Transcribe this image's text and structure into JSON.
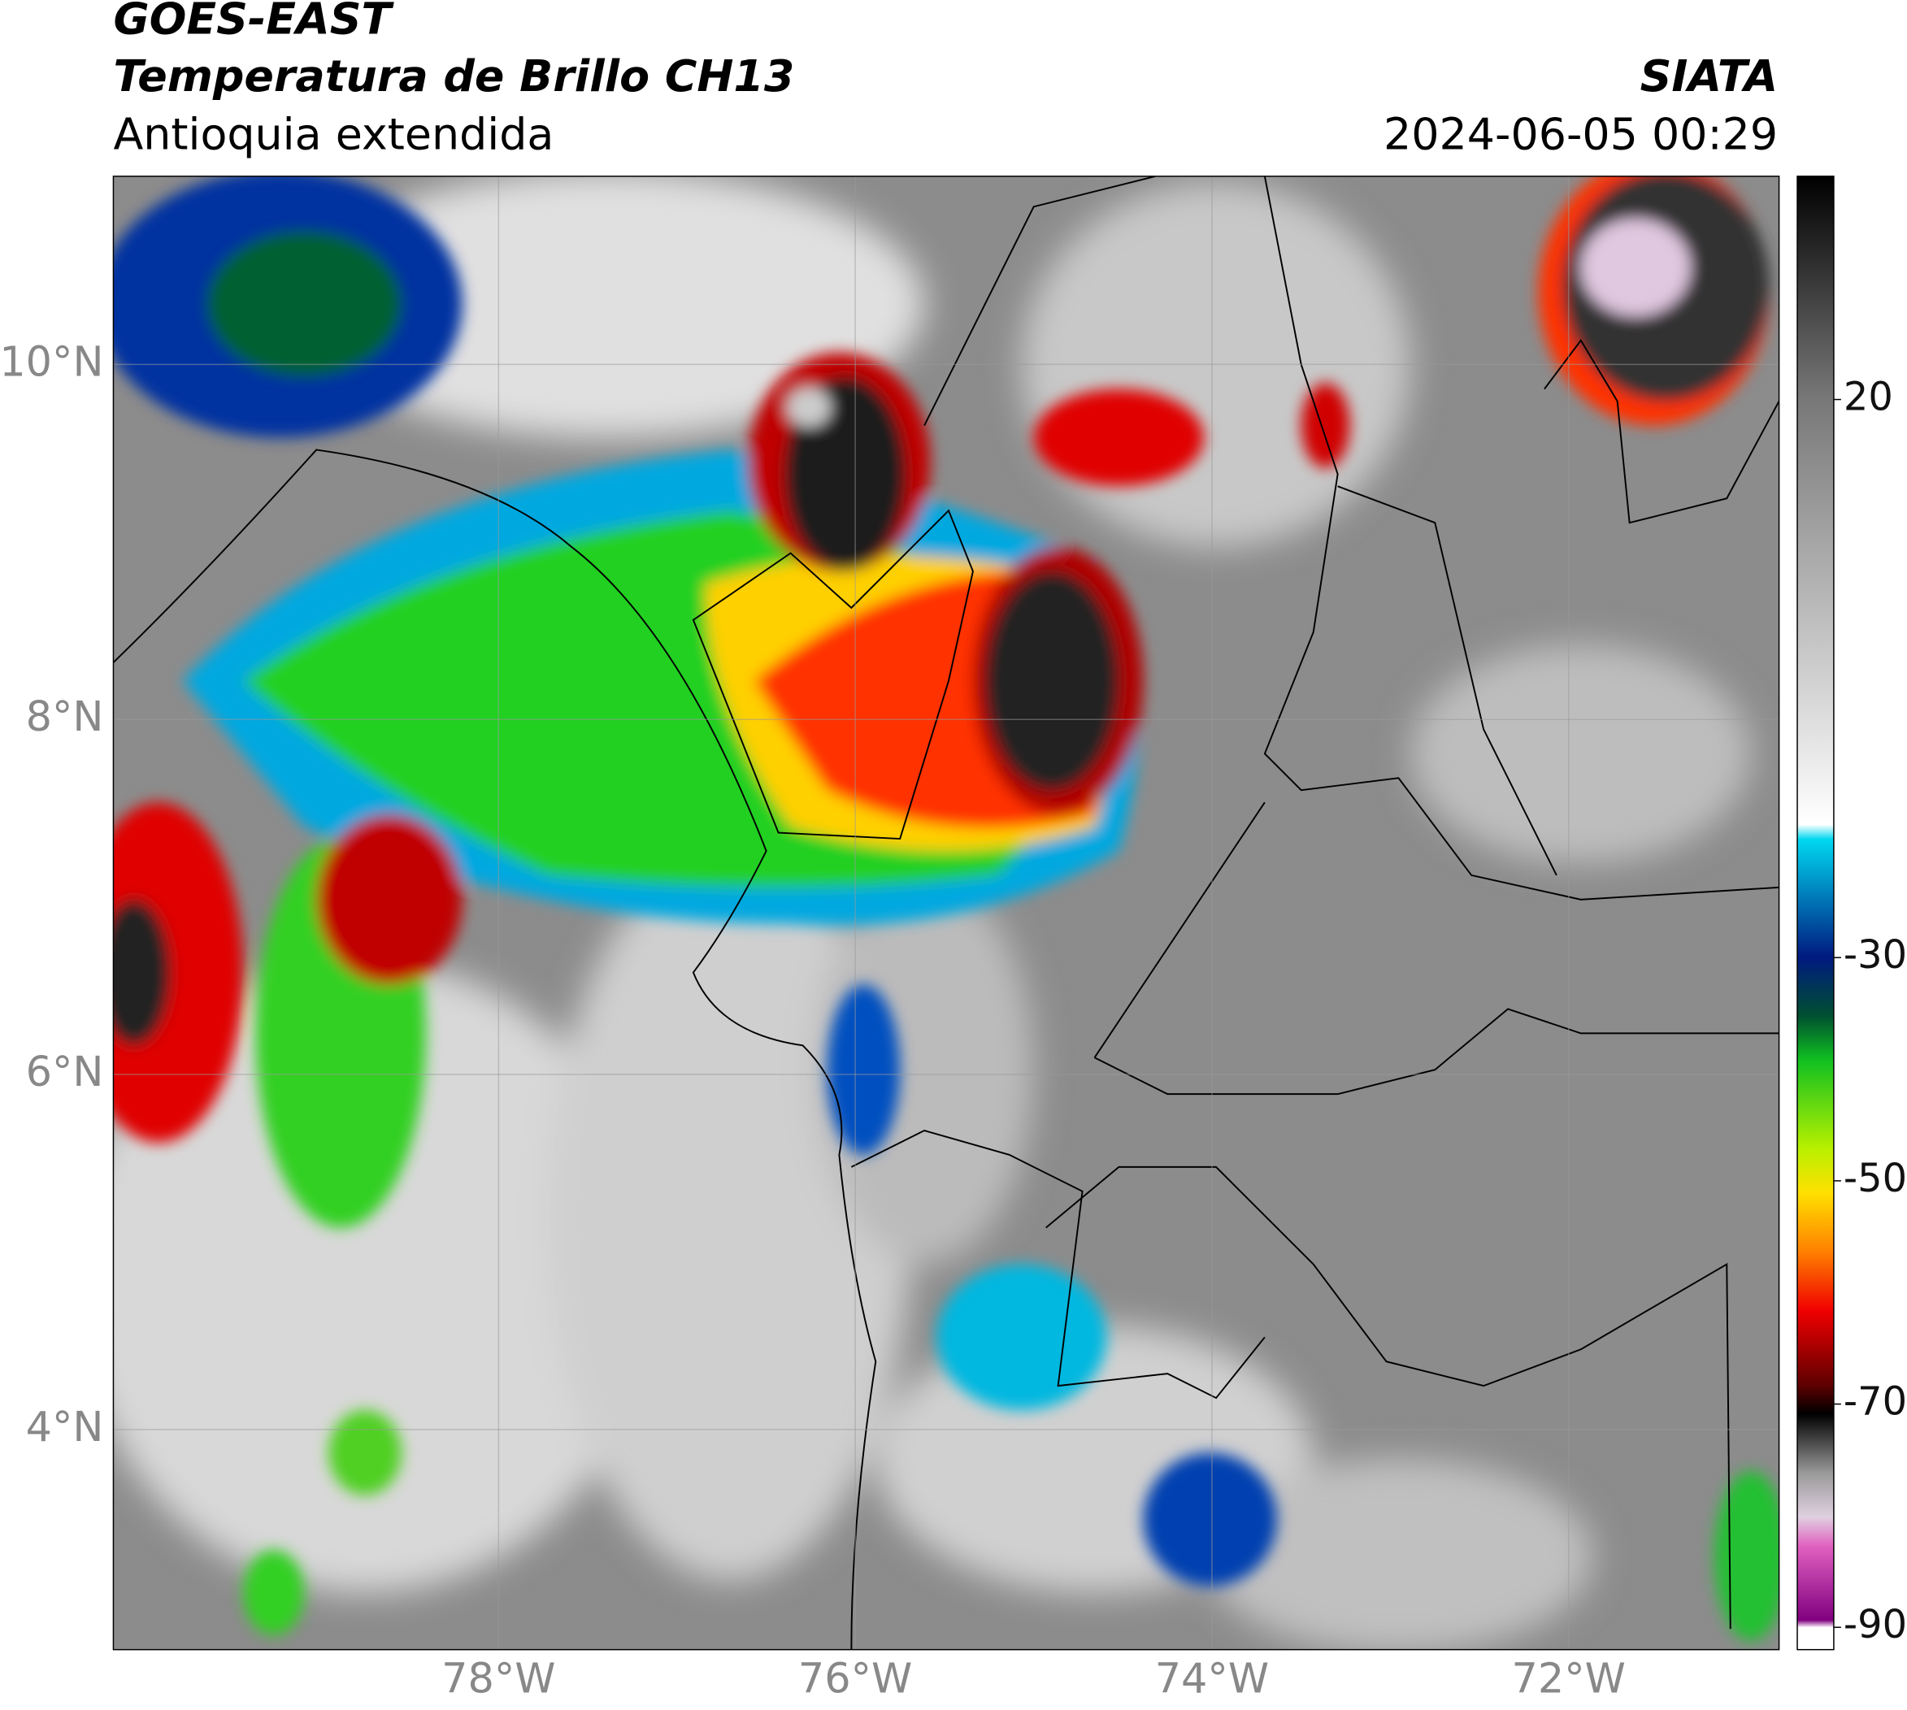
{
  "header": {
    "satellite": "GOES-EAST",
    "product": "Temperatura de Brillo CH13",
    "region": "Antioquia extendida",
    "source": "SIATA",
    "timestamp": "2024-06-05 00:29"
  },
  "map": {
    "lat_range": [
      2.76,
      11.06
    ],
    "lon_range": [
      -80.16,
      -70.82
    ],
    "lat_ticks": [
      {
        "value": 10,
        "label": "10°N"
      },
      {
        "value": 8,
        "label": "8°N"
      },
      {
        "value": 6,
        "label": "6°N"
      },
      {
        "value": 4,
        "label": "4°N"
      }
    ],
    "lon_ticks": [
      {
        "value": -78,
        "label": "78°W"
      },
      {
        "value": -76,
        "label": "76°W"
      },
      {
        "value": -74,
        "label": "74°W"
      },
      {
        "value": -72,
        "label": "72°W"
      }
    ],
    "grid": true
  },
  "colorbar": {
    "range": [
      -92,
      40
    ],
    "ticks": [
      20,
      -30,
      -50,
      -70,
      -90
    ]
  }
}
